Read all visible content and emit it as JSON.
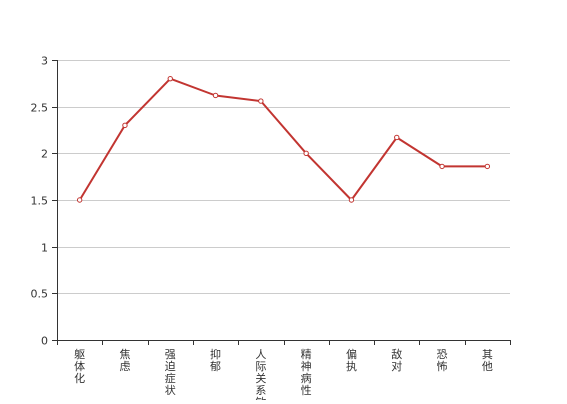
{
  "chart_data": {
    "type": "line",
    "categories": [
      "躯体化",
      "焦虑",
      "强迫症状",
      "抑郁",
      "人际关系敏感",
      "精神病性",
      "偏执",
      "敌对",
      "恐怖",
      "其他"
    ],
    "series": [
      {
        "values": [
          1.5,
          2.3,
          2.8,
          2.62,
          2.56,
          2.0,
          1.5,
          2.17,
          1.86,
          1.86
        ]
      }
    ],
    "ylim": [
      0,
      3
    ],
    "yticks": [
      "0",
      "0.5",
      "1",
      "1.5",
      "2",
      "2.5",
      "3"
    ],
    "grid": true,
    "line_color": "#c23531",
    "axis_color": "#333333",
    "grid_color": "#cccccc"
  }
}
